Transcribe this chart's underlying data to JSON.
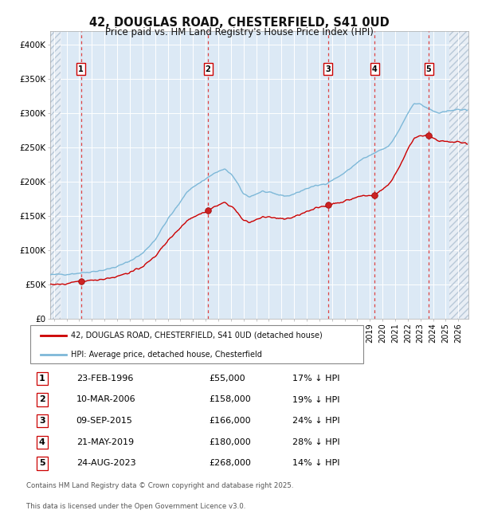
{
  "title_line1": "42, DOUGLAS ROAD, CHESTERFIELD, S41 0UD",
  "title_line2": "Price paid vs. HM Land Registry's House Price Index (HPI)",
  "legend_label_red": "42, DOUGLAS ROAD, CHESTERFIELD, S41 0UD (detached house)",
  "legend_label_blue": "HPI: Average price, detached house, Chesterfield",
  "footer_line1": "Contains HM Land Registry data © Crown copyright and database right 2025.",
  "footer_line2": "This data is licensed under the Open Government Licence v3.0.",
  "sales": [
    {
      "num": 1,
      "date": "1996-02-23",
      "price": 55000,
      "x_year": 1996.14
    },
    {
      "num": 2,
      "date": "2006-03-10",
      "price": 158000,
      "x_year": 2006.19
    },
    {
      "num": 3,
      "date": "2015-09-09",
      "price": 166000,
      "x_year": 2015.69
    },
    {
      "num": 4,
      "date": "2019-05-21",
      "price": 180000,
      "x_year": 2019.39
    },
    {
      "num": 5,
      "date": "2023-08-24",
      "price": 268000,
      "x_year": 2023.65
    }
  ],
  "table_rows": [
    {
      "num": 1,
      "date_str": "23-FEB-1996",
      "price_str": "£55,000",
      "pct_str": "17% ↓ HPI"
    },
    {
      "num": 2,
      "date_str": "10-MAR-2006",
      "price_str": "£158,000",
      "pct_str": "19% ↓ HPI"
    },
    {
      "num": 3,
      "date_str": "09-SEP-2015",
      "price_str": "£166,000",
      "pct_str": "24% ↓ HPI"
    },
    {
      "num": 4,
      "date_str": "21-MAY-2019",
      "price_str": "£180,000",
      "pct_str": "28% ↓ HPI"
    },
    {
      "num": 5,
      "date_str": "24-AUG-2023",
      "price_str": "£268,000",
      "pct_str": "14% ↓ HPI"
    }
  ],
  "ylim": [
    0,
    420000
  ],
  "yticks": [
    0,
    50000,
    100000,
    150000,
    200000,
    250000,
    300000,
    350000,
    400000
  ],
  "ytick_labels": [
    "£0",
    "£50K",
    "£100K",
    "£150K",
    "£200K",
    "£250K",
    "£300K",
    "£350K",
    "£400K"
  ],
  "xlim_start": 1993.7,
  "xlim_end": 2026.8,
  "data_start": 1994.5,
  "data_end": 2025.3,
  "background_color": "#dce9f5",
  "hatch_bg_color": "#e8eef5",
  "red_color": "#cc0000",
  "blue_color": "#7db8d8",
  "grid_color": "#ffffff",
  "dashed_line_color": "#dd4444"
}
